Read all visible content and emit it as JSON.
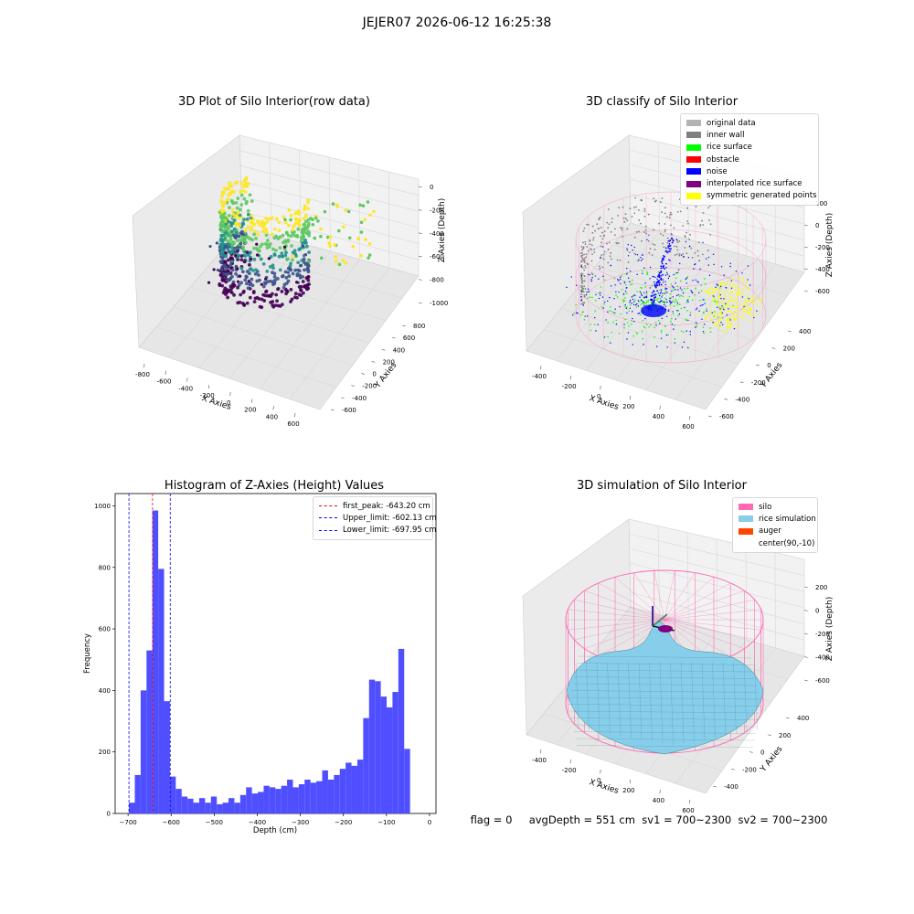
{
  "suptitle": "JEJER07 2026-06-12 16:25:38",
  "footer": {
    "flag": "flag = 0",
    "avg_depth": "avgDepth = 551 cm",
    "sv1": "sv1 = 700~2300",
    "sv2": "sv2 = 700~2300"
  },
  "colors": {
    "original": "#b3b3b3",
    "inner_wall": "#808080",
    "rice_surface": "#00ff00",
    "obstacle": "#ff0000",
    "noise": "#0000ff",
    "interpolated": "#800080",
    "symmetric": "#ffff00",
    "silo": "#ff69b4",
    "rice_sim": "#87ceeb",
    "auger": "#ff4500",
    "hist": "#4b4bff"
  },
  "chart_data": [
    {
      "type": "scatter",
      "title": "3D Plot of Silo Interior(row data)",
      "xlabel": "X Axies",
      "ylabel": "Y Axies",
      "zlabel": "Z Axies (Depth)",
      "x_ticks": [
        "-800",
        "-600",
        "-400",
        "-200",
        "0",
        "200",
        "400",
        "600"
      ],
      "y_ticks": [
        "-600",
        "-400",
        "-200",
        "0",
        "200",
        "400",
        "600",
        "800"
      ],
      "z_ticks": [
        "0",
        "-200",
        "-400",
        "-600",
        "-800",
        "-1000"
      ],
      "colormap": "viridis"
    },
    {
      "type": "scatter",
      "title": "3D classify of Silo Interior",
      "xlabel": "X Axies",
      "ylabel": "Y Axies",
      "zlabel": "Z Axies (Depth)",
      "x_ticks": [
        "-400",
        "-200",
        "0",
        "200",
        "400",
        "600"
      ],
      "y_ticks": [
        "-600",
        "-400",
        "-200",
        "0",
        "200",
        "400"
      ],
      "z_ticks": [
        "200",
        "0",
        "-200",
        "-400",
        "-600"
      ],
      "legend": [
        {
          "label": "original data",
          "color": "#b3b3b3"
        },
        {
          "label": "inner wall",
          "color": "#808080"
        },
        {
          "label": "rice surface",
          "color": "#00ff00"
        },
        {
          "label": "obstacle",
          "color": "#ff0000"
        },
        {
          "label": "noise",
          "color": "#0000ff"
        },
        {
          "label": "interpolated rice surface",
          "color": "#800080"
        },
        {
          "label": "symmetric generated points",
          "color": "#ffff00"
        }
      ],
      "legend_position": "top-right"
    },
    {
      "type": "bar",
      "title": "Histogram of Z-Axies (Height) Values",
      "xlabel": "Depth (cm)",
      "ylabel": "Frequency",
      "xlim": [
        -730,
        15
      ],
      "ylim": [
        0,
        1040
      ],
      "x_ticks": [
        -700,
        -600,
        -500,
        -400,
        -300,
        -200,
        -100,
        0
      ],
      "y_ticks": [
        0,
        200,
        400,
        600,
        800,
        1000
      ],
      "bin_start": -698,
      "bin_width": 13.6,
      "values": [
        35,
        125,
        400,
        530,
        985,
        795,
        365,
        120,
        80,
        55,
        48,
        35,
        50,
        35,
        55,
        30,
        35,
        50,
        35,
        60,
        85,
        65,
        70,
        90,
        85,
        80,
        90,
        110,
        85,
        95,
        110,
        100,
        105,
        140,
        110,
        125,
        145,
        165,
        155,
        175,
        310,
        435,
        430,
        380,
        345,
        395,
        535,
        210
      ],
      "vlines": [
        {
          "label": "first_peak: -643.20 cm",
          "x": -643.2,
          "color": "#ff0000"
        },
        {
          "label": "Upper_limit: -602.13 cm",
          "x": -602.13,
          "color": "#0000ff"
        },
        {
          "label": "Lower_limit: -697.95 cm",
          "x": -697.95,
          "color": "#0000ff"
        }
      ],
      "legend_position": "top-right"
    },
    {
      "type": "area",
      "title": "3D simulation of Silo Interior",
      "xlabel": "X Axies",
      "ylabel": "Y Axies",
      "zlabel": "Z Axies (Depth)",
      "x_ticks": [
        "-400",
        "-200",
        "0",
        "200",
        "400",
        "600"
      ],
      "y_ticks": [
        "-400",
        "-200",
        "0",
        "200",
        "400"
      ],
      "z_ticks": [
        "200",
        "0",
        "-200",
        "-400",
        "-600"
      ],
      "legend": [
        {
          "label": "silo",
          "color": "#ff69b4"
        },
        {
          "label": "rice simulation",
          "color": "#87ceeb"
        },
        {
          "label": "auger",
          "color": "#ff4500"
        },
        {
          "label": "center(90,-10)",
          "color": ""
        }
      ],
      "legend_position": "top-right"
    }
  ]
}
